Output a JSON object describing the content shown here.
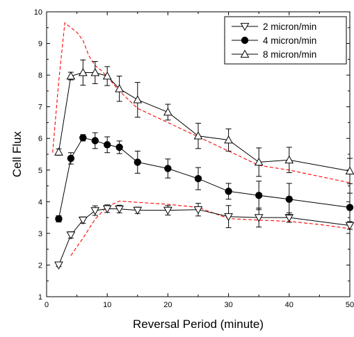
{
  "chart_data": {
    "type": "line",
    "xlabel": "Reversal Period (minute)",
    "ylabel": "Cell Flux",
    "xlim": [
      0,
      50
    ],
    "ylim": [
      1,
      10
    ],
    "xticks": [
      "0",
      "10",
      "20",
      "30",
      "40",
      "50"
    ],
    "yticks": [
      "1",
      "2",
      "3",
      "4",
      "5",
      "6",
      "7",
      "8",
      "9",
      "10"
    ],
    "grid": false,
    "legend_position": "top-right",
    "series": [
      {
        "name": "2 micron/min",
        "marker": "triangle-down-open",
        "color": "#000000",
        "x": [
          2,
          4,
          6,
          8,
          10,
          12,
          15,
          20,
          25,
          30,
          35,
          40,
          50
        ],
        "y": [
          2.0,
          2.95,
          3.42,
          3.72,
          3.78,
          3.77,
          3.73,
          3.73,
          3.75,
          3.53,
          3.5,
          3.5,
          3.25
        ],
        "err": [
          0.05,
          0.1,
          0.1,
          0.15,
          0.12,
          0.12,
          0.1,
          0.15,
          0.2,
          0.35,
          0.3,
          0.15,
          0.12
        ]
      },
      {
        "name": "4 micron/min",
        "marker": "circle-filled",
        "color": "#000000",
        "x": [
          2,
          4,
          6,
          8,
          10,
          12,
          15,
          20,
          25,
          30,
          35,
          40,
          50
        ],
        "y": [
          3.46,
          5.37,
          6.02,
          5.93,
          5.8,
          5.72,
          5.25,
          5.05,
          4.73,
          4.33,
          4.2,
          4.08,
          3.82
        ],
        "err": [
          0.1,
          0.18,
          0.1,
          0.25,
          0.25,
          0.2,
          0.35,
          0.3,
          0.35,
          0.25,
          0.45,
          0.5,
          0.45
        ]
      },
      {
        "name": "8 micron/min",
        "marker": "triangle-up-open",
        "color": "#000000",
        "x": [
          2,
          4,
          6,
          8,
          10,
          12,
          15,
          20,
          25,
          30,
          35,
          40,
          50
        ],
        "y": [
          5.57,
          7.97,
          8.08,
          8.08,
          7.97,
          7.57,
          7.22,
          6.83,
          6.08,
          5.95,
          5.25,
          5.32,
          4.97
        ],
        "err": [
          0.1,
          0.12,
          0.4,
          0.35,
          0.3,
          0.4,
          0.55,
          0.25,
          0.4,
          0.35,
          0.45,
          0.4,
          0.4
        ]
      }
    ],
    "model_curves": [
      {
        "style": "dashed",
        "color": "#ff0000",
        "x": [
          1,
          2,
          3,
          4,
          5,
          6,
          7,
          8,
          9,
          10,
          12,
          15,
          20,
          25,
          30,
          35,
          40,
          45,
          50
        ],
        "y": [
          5.55,
          7.8,
          9.65,
          9.5,
          9.35,
          9.1,
          8.6,
          8.3,
          8.15,
          7.95,
          7.5,
          6.95,
          6.5,
          6.05,
          5.6,
          5.15,
          5.0,
          4.8,
          4.6
        ]
      },
      {
        "style": "dashed",
        "color": "#ff0000",
        "x": [
          4,
          6,
          8,
          10,
          12,
          15,
          20,
          25,
          30,
          35,
          40,
          45,
          50
        ],
        "y": [
          2.3,
          2.85,
          3.45,
          3.85,
          4.02,
          3.98,
          3.92,
          3.82,
          3.47,
          3.42,
          3.38,
          3.28,
          3.15
        ]
      }
    ]
  }
}
